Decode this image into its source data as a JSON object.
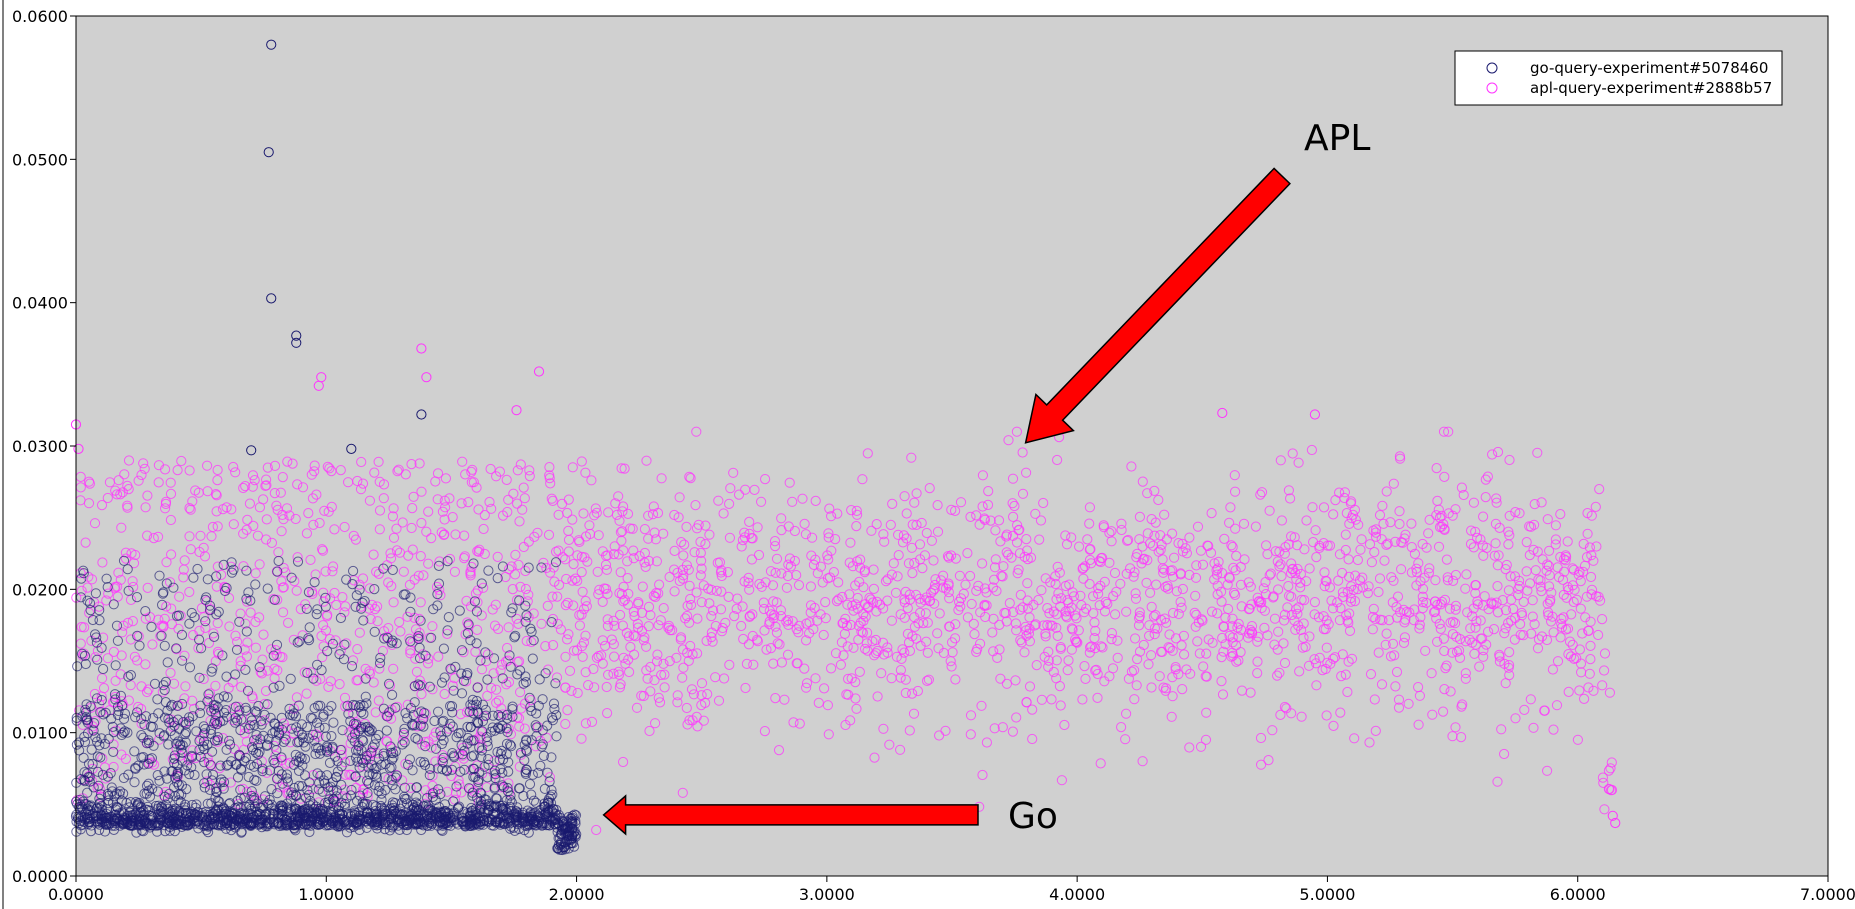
{
  "chart_data": {
    "type": "scatter",
    "title": "",
    "xlabel": "",
    "ylabel": "",
    "xlim": [
      0,
      7
    ],
    "ylim": [
      0,
      0.06
    ],
    "xticks": [
      "0.0000",
      "1.0000",
      "2.0000",
      "3.0000",
      "4.0000",
      "5.0000",
      "6.0000",
      "7.0000"
    ],
    "yticks": [
      "0.0000",
      "0.0100",
      "0.0200",
      "0.0300",
      "0.0400",
      "0.0500",
      "0.0600"
    ],
    "grid": false,
    "legend_position": "top-right",
    "series": [
      {
        "name": "go-query-experiment#5078460",
        "color": "#1a1a6e",
        "x_range": [
          0,
          2.0
        ],
        "typical_y_range": [
          0.0025,
          0.022
        ],
        "dense_band_y": 0.0035,
        "outliers": [
          {
            "x": 0.78,
            "y": 0.058
          },
          {
            "x": 0.77,
            "y": 0.0505
          },
          {
            "x": 0.78,
            "y": 0.0403
          },
          {
            "x": 0.88,
            "y": 0.0377
          },
          {
            "x": 0.88,
            "y": 0.0372
          },
          {
            "x": 1.38,
            "y": 0.0322
          },
          {
            "x": 0.7,
            "y": 0.0297
          },
          {
            "x": 1.1,
            "y": 0.0298
          }
        ]
      },
      {
        "name": "apl-query-experiment#2888b57",
        "color": "#ff33ff",
        "x_range": [
          0,
          6.15
        ],
        "typical_y_range": [
          0.009,
          0.029
        ],
        "center_y": 0.019,
        "outliers": [
          {
            "x": 1.38,
            "y": 0.0368
          },
          {
            "x": 1.85,
            "y": 0.0352
          },
          {
            "x": 0.98,
            "y": 0.0348
          },
          {
            "x": 1.4,
            "y": 0.0348
          },
          {
            "x": 0.97,
            "y": 0.0342
          },
          {
            "x": 1.76,
            "y": 0.0325
          },
          {
            "x": 4.58,
            "y": 0.0323
          },
          {
            "x": 4.95,
            "y": 0.0322
          },
          {
            "x": 0.0,
            "y": 0.0315
          },
          {
            "x": 0.01,
            "y": 0.0298
          },
          {
            "x": 6.15,
            "y": 0.0037
          },
          {
            "x": 6.14,
            "y": 0.0042
          }
        ]
      }
    ],
    "annotations": [
      {
        "text": "APL",
        "arrow_tip": {
          "x": 3.75,
          "y": 0.0305
        }
      },
      {
        "text": "Go",
        "arrow_tip": {
          "x": 2.1,
          "y": 0.0044
        }
      }
    ]
  }
}
